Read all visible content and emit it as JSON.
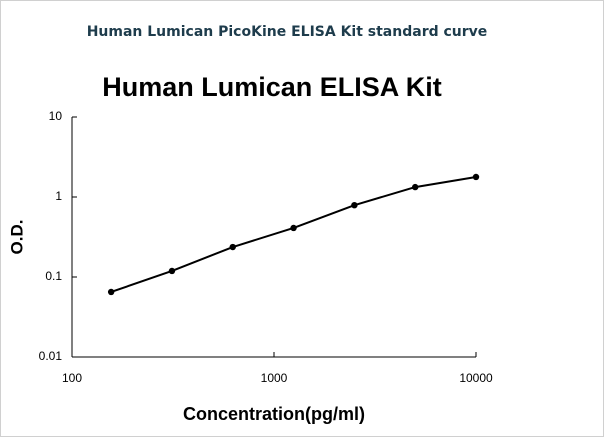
{
  "header": {
    "title": "Human Lumican PicoKine ELISA Kit standard curve"
  },
  "chart_data": {
    "type": "line",
    "title": "Human Lumican ELISA Kit",
    "x_label": "Concentration(pg/ml)",
    "y_label": "O.D.",
    "x": [
      156.25,
      312.5,
      625,
      1250,
      2500,
      5000,
      10000
    ],
    "series": [
      {
        "name": "Standard curve",
        "color": "#000000",
        "values": [
          0.065,
          0.119,
          0.237,
          0.41,
          0.79,
          1.33,
          1.78
        ]
      }
    ],
    "xscale": "log",
    "yscale": "log",
    "xlim": [
      100,
      10000
    ],
    "ylim": [
      0.01,
      10
    ],
    "xticks": [
      100,
      1000,
      10000
    ],
    "yticks": [
      0.01,
      0.1,
      1,
      10
    ]
  }
}
